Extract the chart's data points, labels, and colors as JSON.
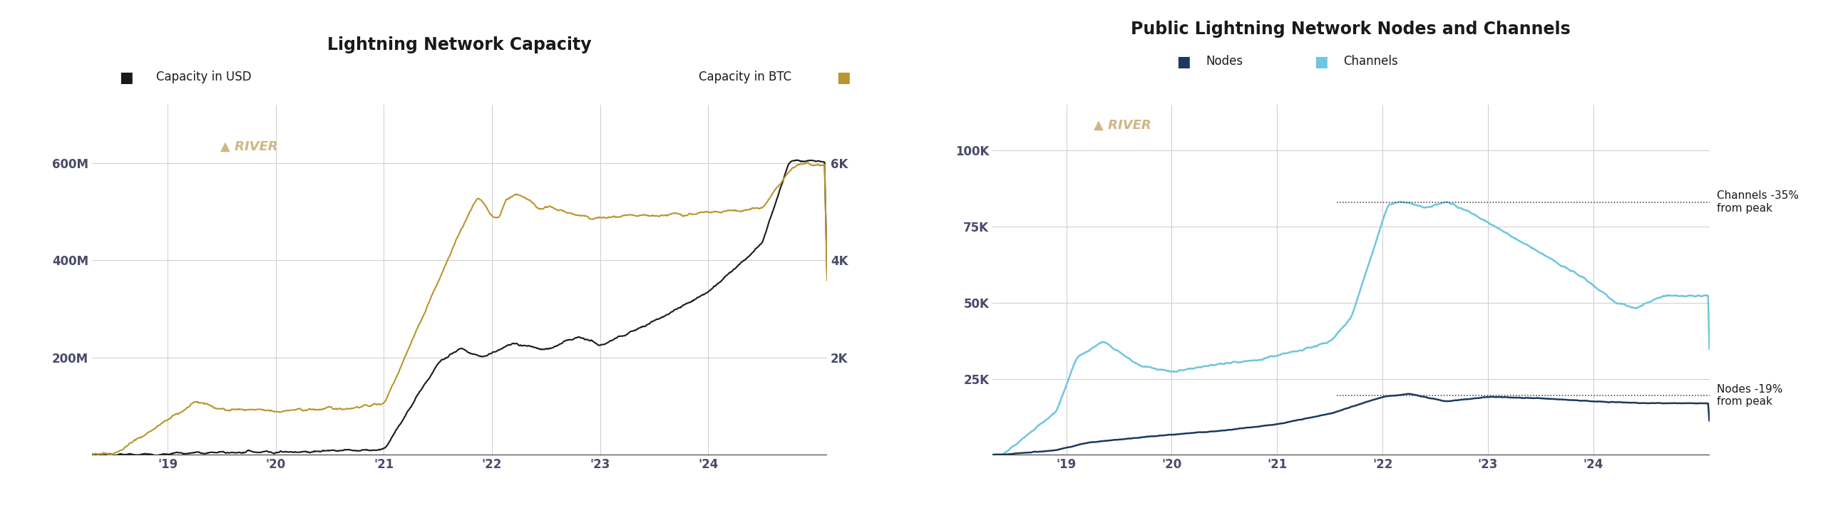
{
  "chart1": {
    "title": "Lightning Network Capacity",
    "legend_usd": "Capacity in USD",
    "legend_btc": "Capacity in BTC",
    "color_usd": "#1a1a1a",
    "color_btc": "#b8962e",
    "river_color": "#c8a96e",
    "ylim_usd": [
      0,
      720000000
    ],
    "ylim_btc": [
      0,
      7200
    ],
    "yticks_usd": [
      200000000,
      400000000,
      600000000
    ],
    "ytick_labels_usd": [
      "200M",
      "400M",
      "600M"
    ],
    "yticks_btc": [
      2000,
      4000,
      6000
    ],
    "ytick_labels_btc": [
      "2K",
      "4K",
      "6K"
    ],
    "axis_label_color": "#4a4a6a",
    "grid_color": "#cccccc"
  },
  "chart2": {
    "title": "Public Lightning Network Nodes and Channels",
    "legend_nodes": "Nodes",
    "legend_channels": "Channels",
    "color_nodes": "#1b3a5c",
    "color_channels": "#6ec6e0",
    "river_color": "#c8a96e",
    "ylim": [
      0,
      115000
    ],
    "yticks": [
      25000,
      50000,
      75000,
      100000
    ],
    "ytick_labels": [
      "25K",
      "50K",
      "75K",
      "100K"
    ],
    "axis_label_color": "#4a4a6a",
    "grid_color": "#cccccc",
    "channels_peak_y": 83000,
    "nodes_peak_y": 19500,
    "annotation_channels": "Channels -35%\nfrom peak",
    "annotation_nodes": "Nodes -19%\nfrom peak"
  },
  "xtick_pos": [
    2019,
    2020,
    2021,
    2022,
    2023,
    2024
  ],
  "xtick_labels": [
    "'19",
    "'20",
    "'21",
    "'22",
    "'23",
    "'24"
  ],
  "xlim": [
    2018.3,
    2025.1
  ]
}
